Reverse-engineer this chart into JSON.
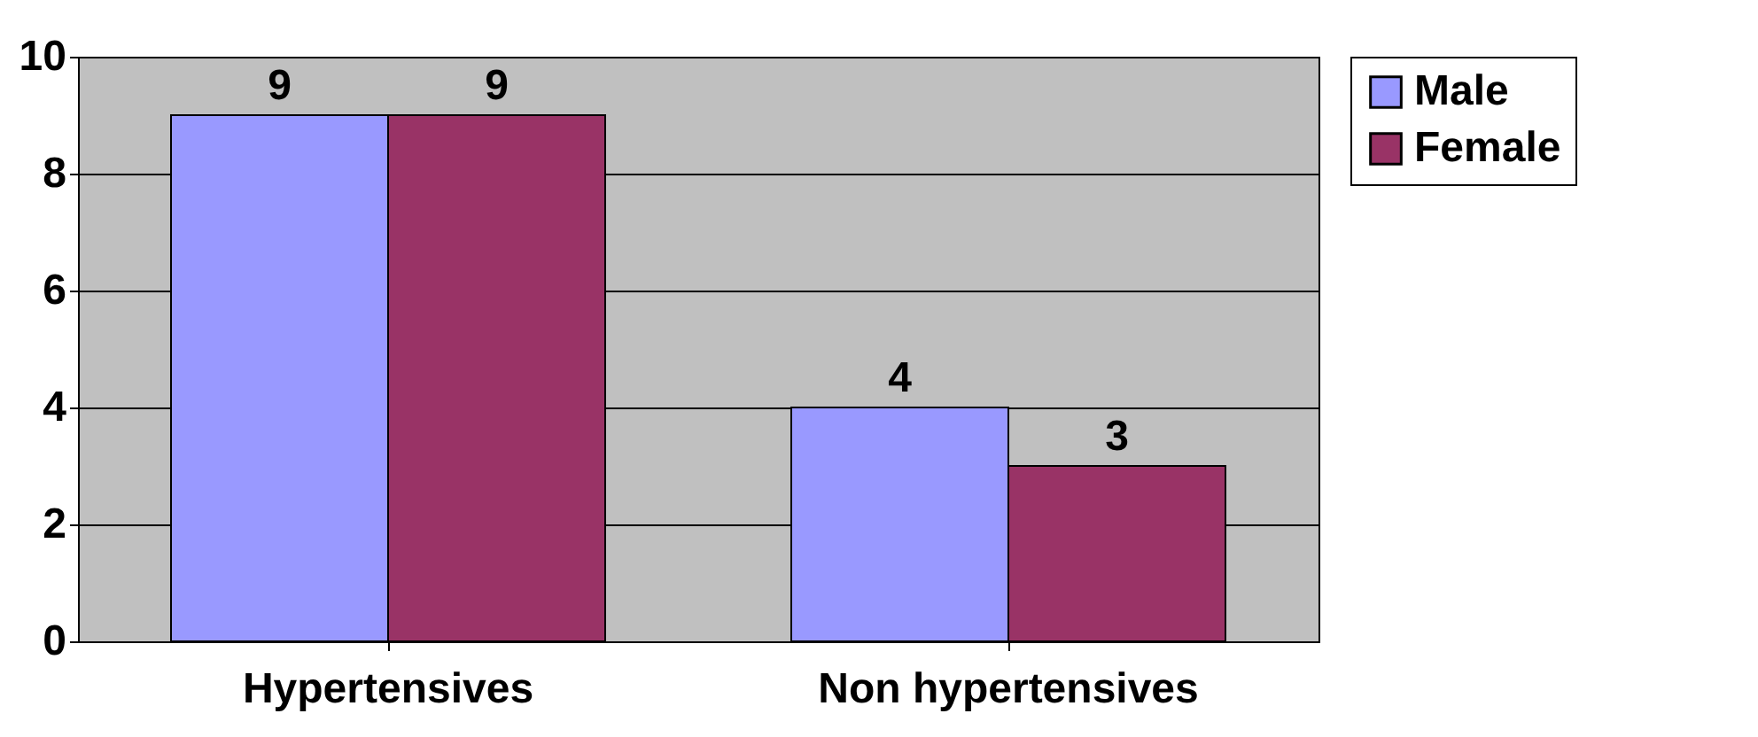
{
  "chart_data": {
    "type": "bar",
    "categories": [
      "Hypertensives",
      "Non hypertensives"
    ],
    "series": [
      {
        "name": "Male",
        "color": "#9999ff",
        "values": [
          9,
          4
        ]
      },
      {
        "name": "Female",
        "color": "#993366",
        "values": [
          9,
          3
        ]
      }
    ],
    "ylim": [
      0,
      10
    ],
    "yticks": [
      0,
      2,
      4,
      6,
      8,
      10
    ],
    "grid": "y",
    "legend": "right",
    "data_labels": true
  }
}
